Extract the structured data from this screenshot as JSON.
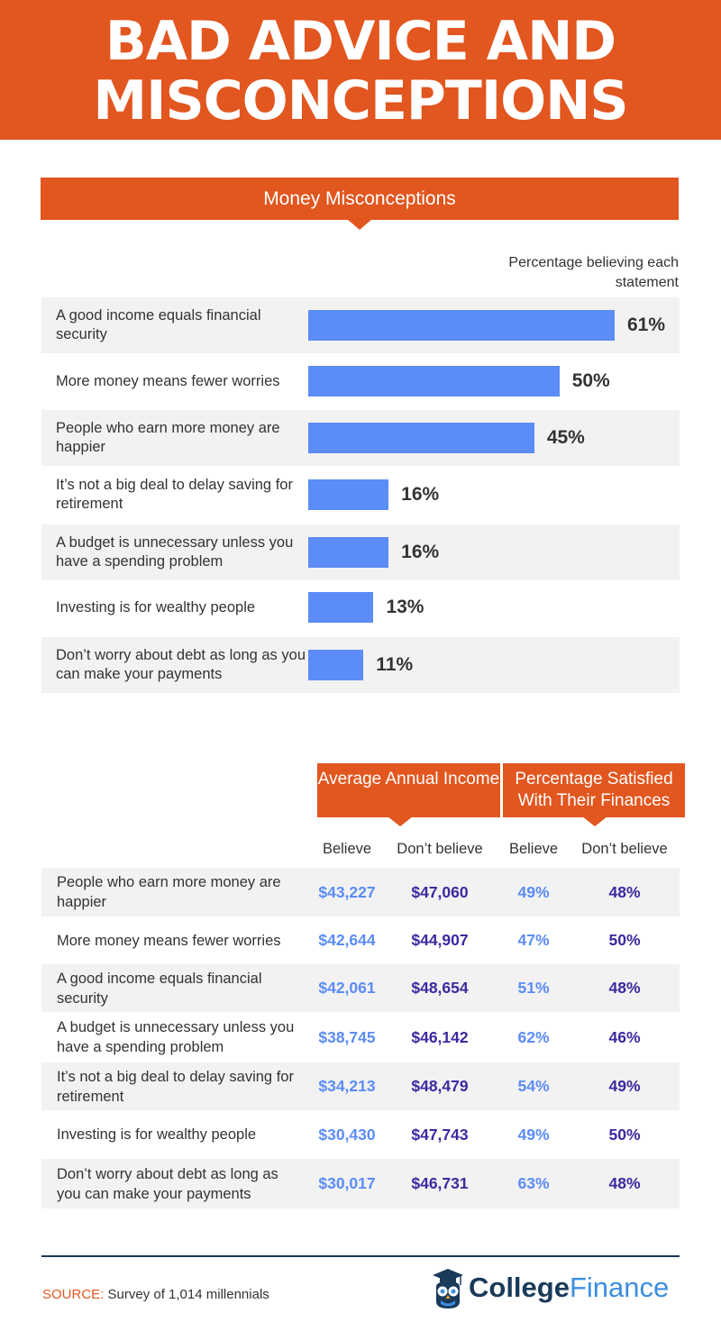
{
  "header": {
    "title_line1": "BAD ADVICE AND",
    "title_line2": "MISCONCEPTIONS"
  },
  "colors": {
    "accent": "#e2561f",
    "bar": "#5b8cf7",
    "believe": "#5b8cf7",
    "dont_believe": "#3a2aa0",
    "row_shade": "#f2f2f2"
  },
  "chart_data": {
    "type": "bar",
    "title": "Money Misconceptions",
    "value_caption": "Percentage believing each statement",
    "categories": [
      "A good income equals financial security",
      "More money means fewer worries",
      "People who earn more money are happier",
      "It’s not a big deal to delay saving for retirement",
      "A budget is unnecessary unless you have a spending problem",
      "Investing is for wealthy people",
      "Don’t worry about debt as long as you can make your payments"
    ],
    "values": [
      61,
      50,
      45,
      16,
      16,
      13,
      11
    ],
    "value_labels": [
      "61%",
      "50%",
      "45%",
      "16%",
      "16%",
      "13%",
      "11%"
    ]
  },
  "table": {
    "group_headers": [
      "Average Annual Income",
      "Percentage Satisfied With Their Finances"
    ],
    "subheaders": [
      "Believe",
      "Don’t believe",
      "Believe",
      "Don’t believe"
    ],
    "rows": [
      {
        "label": "People who earn more money are happier",
        "income_believe": "$43,227",
        "income_dont": "$47,060",
        "sat_believe": "49%",
        "sat_dont": "48%"
      },
      {
        "label": "More money means fewer worries",
        "income_believe": "$42,644",
        "income_dont": "$44,907",
        "sat_believe": "47%",
        "sat_dont": "50%"
      },
      {
        "label": "A good income equals financial security",
        "income_believe": "$42,061",
        "income_dont": "$48,654",
        "sat_believe": "51%",
        "sat_dont": "48%"
      },
      {
        "label": "A budget is unnecessary unless you have a spending problem",
        "income_believe": "$38,745",
        "income_dont": "$46,142",
        "sat_believe": "62%",
        "sat_dont": "46%"
      },
      {
        "label": "It’s not a big deal to delay saving for retirement",
        "income_believe": "$34,213",
        "income_dont": "$48,479",
        "sat_believe": "54%",
        "sat_dont": "49%"
      },
      {
        "label": "Investing is for wealthy people",
        "income_believe": "$30,430",
        "income_dont": "$47,743",
        "sat_believe": "49%",
        "sat_dont": "50%"
      },
      {
        "label": "Don’t worry about debt as long as you can make your payments",
        "income_believe": "$30,017",
        "income_dont": "$46,731",
        "sat_believe": "63%",
        "sat_dont": "48%"
      }
    ]
  },
  "footer": {
    "source_key": "SOURCE:",
    "source_text": "Survey of 1,014 millennials",
    "logo_part1": "College",
    "logo_part2": "Finance",
    "logo_icon": "owl-graduate-icon"
  }
}
